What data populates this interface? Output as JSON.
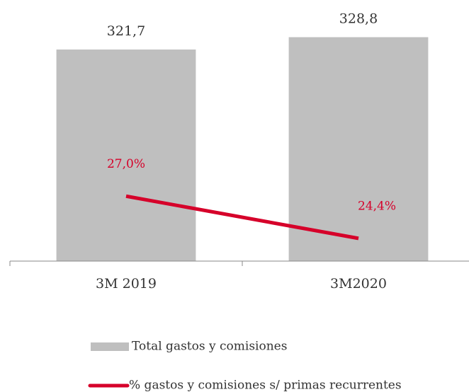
{
  "chart_data": {
    "type": "bar",
    "categories": [
      "3M 2019",
      "3M2020"
    ],
    "series": [
      {
        "name": "Total gastos y comisiones",
        "type": "bar",
        "color": "#bfbfbf",
        "values": [
          321.7,
          328.8
        ],
        "value_labels": [
          "321,7",
          "328,8"
        ]
      },
      {
        "name": "% gastos y comisiones s/ primas recurrentes",
        "type": "line",
        "axis": "y2",
        "color": "#d6002a",
        "values": [
          27.0,
          24.4
        ],
        "value_labels": [
          "27,0%",
          "24,4%"
        ]
      }
    ],
    "ylim": [
      200,
      340
    ],
    "y2lim": [
      23,
      38
    ]
  }
}
